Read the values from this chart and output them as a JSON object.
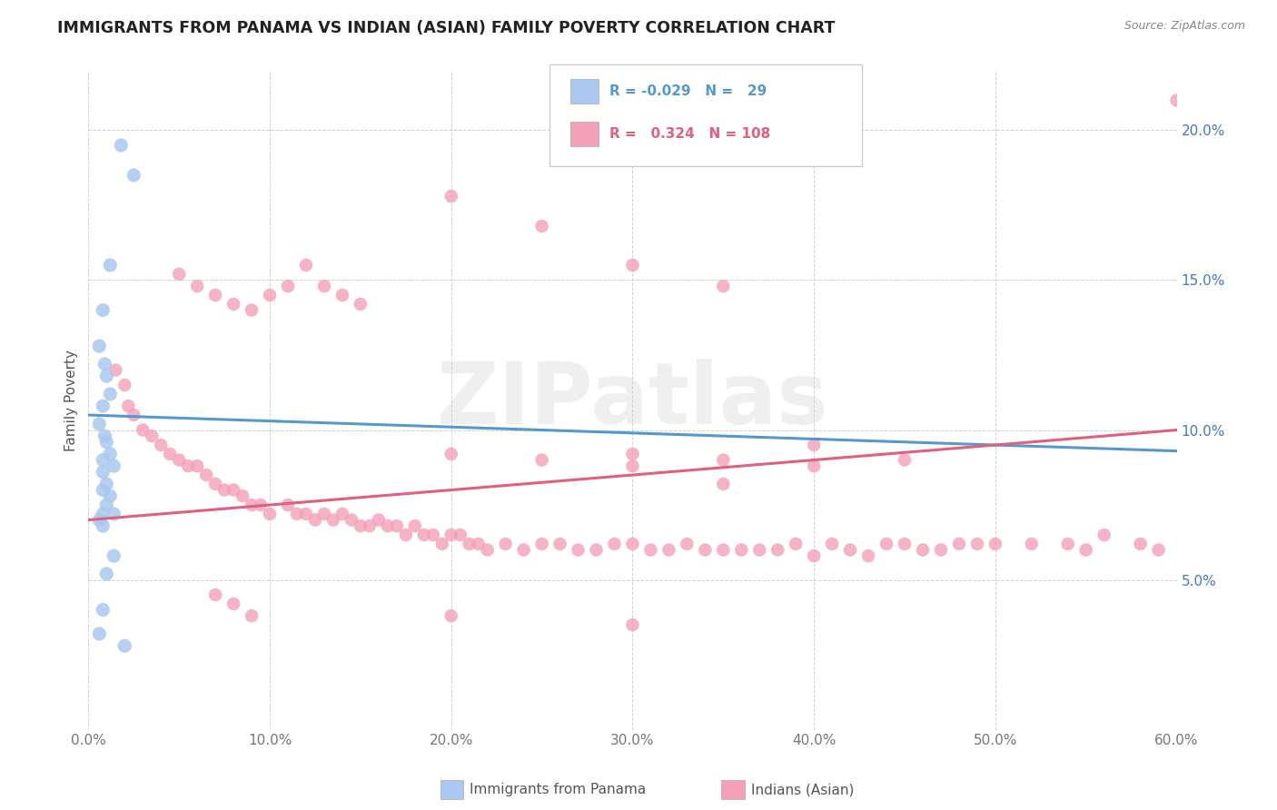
{
  "title": "IMMIGRANTS FROM PANAMA VS INDIAN (ASIAN) FAMILY POVERTY CORRELATION CHART",
  "source": "Source: ZipAtlas.com",
  "ylabel": "Family Poverty",
  "xlim": [
    0.0,
    0.6
  ],
  "ylim": [
    0.0,
    0.22
  ],
  "xtick_labels": [
    "0.0%",
    "10.0%",
    "20.0%",
    "30.0%",
    "40.0%",
    "50.0%",
    "60.0%"
  ],
  "xtick_vals": [
    0.0,
    0.1,
    0.2,
    0.3,
    0.4,
    0.5,
    0.6
  ],
  "ytick_labels": [
    "5.0%",
    "10.0%",
    "15.0%",
    "20.0%"
  ],
  "ytick_vals": [
    0.05,
    0.1,
    0.15,
    0.2
  ],
  "color_panama": "#aac8f0",
  "color_indian": "#f4a0b8",
  "trendline_color_panama": "#5599cc",
  "trendline_color_indian": "#e06080",
  "watermark": "ZIPatlas",
  "panama_trend_x": [
    0.0,
    0.6
  ],
  "panama_trend_y": [
    0.105,
    0.093
  ],
  "indian_trend_x": [
    0.0,
    0.6
  ],
  "indian_trend_y": [
    0.07,
    0.1
  ],
  "panama_x": [
    0.018,
    0.025,
    0.012,
    0.008,
    0.006,
    0.009,
    0.01,
    0.012,
    0.008,
    0.006,
    0.009,
    0.01,
    0.012,
    0.008,
    0.014,
    0.008,
    0.01,
    0.008,
    0.012,
    0.01,
    0.008,
    0.014,
    0.006,
    0.008,
    0.014,
    0.01,
    0.008,
    0.006,
    0.02
  ],
  "panama_y": [
    0.195,
    0.185,
    0.155,
    0.14,
    0.128,
    0.122,
    0.118,
    0.112,
    0.108,
    0.102,
    0.098,
    0.096,
    0.092,
    0.09,
    0.088,
    0.086,
    0.082,
    0.08,
    0.078,
    0.075,
    0.072,
    0.072,
    0.07,
    0.068,
    0.058,
    0.052,
    0.04,
    0.032,
    0.028
  ],
  "indian_x": [
    0.015,
    0.02,
    0.022,
    0.025,
    0.03,
    0.035,
    0.04,
    0.045,
    0.05,
    0.055,
    0.06,
    0.065,
    0.07,
    0.075,
    0.08,
    0.085,
    0.09,
    0.095,
    0.1,
    0.11,
    0.115,
    0.12,
    0.125,
    0.13,
    0.135,
    0.14,
    0.145,
    0.15,
    0.155,
    0.16,
    0.165,
    0.17,
    0.175,
    0.18,
    0.185,
    0.19,
    0.195,
    0.2,
    0.205,
    0.21,
    0.215,
    0.22,
    0.23,
    0.24,
    0.25,
    0.26,
    0.27,
    0.28,
    0.29,
    0.3,
    0.31,
    0.32,
    0.33,
    0.34,
    0.35,
    0.36,
    0.37,
    0.38,
    0.39,
    0.4,
    0.41,
    0.42,
    0.43,
    0.44,
    0.45,
    0.46,
    0.47,
    0.48,
    0.49,
    0.5,
    0.52,
    0.54,
    0.55,
    0.56,
    0.58,
    0.59,
    0.6,
    0.05,
    0.06,
    0.07,
    0.08,
    0.09,
    0.1,
    0.11,
    0.12,
    0.13,
    0.14,
    0.15,
    0.2,
    0.25,
    0.3,
    0.35,
    0.4,
    0.3,
    0.35,
    0.4,
    0.45,
    0.2,
    0.25,
    0.3,
    0.35,
    0.07,
    0.08,
    0.09,
    0.2,
    0.3
  ],
  "indian_y": [
    0.12,
    0.115,
    0.108,
    0.105,
    0.1,
    0.098,
    0.095,
    0.092,
    0.09,
    0.088,
    0.088,
    0.085,
    0.082,
    0.08,
    0.08,
    0.078,
    0.075,
    0.075,
    0.072,
    0.075,
    0.072,
    0.072,
    0.07,
    0.072,
    0.07,
    0.072,
    0.07,
    0.068,
    0.068,
    0.07,
    0.068,
    0.068,
    0.065,
    0.068,
    0.065,
    0.065,
    0.062,
    0.065,
    0.065,
    0.062,
    0.062,
    0.06,
    0.062,
    0.06,
    0.062,
    0.062,
    0.06,
    0.06,
    0.062,
    0.062,
    0.06,
    0.06,
    0.062,
    0.06,
    0.06,
    0.06,
    0.06,
    0.06,
    0.062,
    0.058,
    0.062,
    0.06,
    0.058,
    0.062,
    0.062,
    0.06,
    0.06,
    0.062,
    0.062,
    0.062,
    0.062,
    0.062,
    0.06,
    0.065,
    0.062,
    0.06,
    0.21,
    0.152,
    0.148,
    0.145,
    0.142,
    0.14,
    0.145,
    0.148,
    0.155,
    0.148,
    0.145,
    0.142,
    0.178,
    0.168,
    0.155,
    0.148,
    0.095,
    0.092,
    0.09,
    0.088,
    0.09,
    0.092,
    0.09,
    0.088,
    0.082,
    0.045,
    0.042,
    0.038,
    0.038,
    0.035
  ]
}
